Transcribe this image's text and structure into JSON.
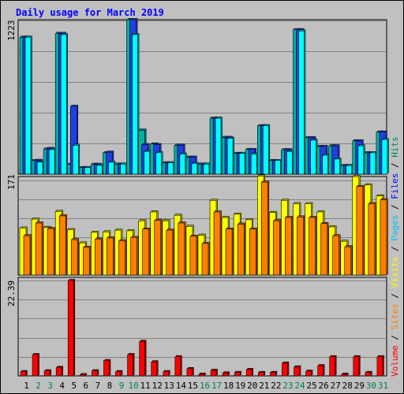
{
  "chart_data": {
    "type": "bar",
    "title": "Daily usage for March 2019",
    "colors": {
      "hits": "#00ffff",
      "files": "#0000ff",
      "pages": "#00c0ff",
      "visits": "#ffff00",
      "sites": "#ff8000",
      "volume": "#ff0000",
      "hits_back": "#008080",
      "files_back": "#2040e0",
      "visits_back": "#ffff00",
      "volume_back": "#ff0000",
      "weekend_label": "#00805c",
      "weekday_label": "#000000",
      "title": "#0000ff",
      "legend_slash": "#000000"
    },
    "categories": [
      "1",
      "2",
      "3",
      "4",
      "5",
      "6",
      "7",
      "8",
      "9",
      "10",
      "11",
      "12",
      "13",
      "14",
      "15",
      "16",
      "17",
      "18",
      "19",
      "20",
      "21",
      "22",
      "23",
      "24",
      "25",
      "26",
      "27",
      "28",
      "29",
      "30",
      "31"
    ],
    "weekend_days": [
      "2",
      "3",
      "9",
      "10",
      "16",
      "17",
      "23",
      "24",
      "30",
      "31"
    ],
    "top_panel": {
      "ymax": 1223,
      "tick_label": "1223",
      "series": [
        {
          "name": "Hits",
          "values": [
            1090,
            108,
            200,
            1120,
            78,
            52,
            78,
            170,
            80,
            1230,
            350,
            240,
            90,
            230,
            135,
            80,
            445,
            292,
            165,
            196,
            385,
            108,
            194,
            1150,
            290,
            220,
            225,
            68,
            265,
            170,
            335
          ]
        },
        {
          "name": "Files",
          "values": [
            1090,
            110,
            205,
            1120,
            540,
            52,
            78,
            175,
            80,
            1230,
            235,
            235,
            90,
            230,
            135,
            80,
            445,
            292,
            165,
            196,
            385,
            108,
            194,
            1150,
            290,
            220,
            225,
            68,
            265,
            170,
            335
          ]
        },
        {
          "name": "Pages",
          "values": [
            1090,
            95,
            195,
            1110,
            230,
            52,
            70,
            95,
            80,
            1110,
            180,
            170,
            90,
            160,
            85,
            80,
            445,
            285,
            165,
            160,
            385,
            108,
            180,
            1140,
            270,
            150,
            120,
            68,
            225,
            170,
            275
          ]
        }
      ]
    },
    "middle_panel": {
      "ymax": 171,
      "tick_label": "171",
      "series": [
        {
          "name": "Visits",
          "values": [
            85,
            101,
            86,
            115,
            82,
            58,
            77,
            78,
            81,
            80,
            98,
            114,
            98,
            108,
            88,
            72,
            135,
            104,
            110,
            100,
            179,
            113,
            135,
            129,
            129,
            114,
            87,
            61,
            178,
            163,
            143
          ]
        },
        {
          "name": "Sites",
          "values": [
            71,
            94,
            84,
            107,
            64,
            50,
            65,
            67,
            62,
            68,
            83,
            99,
            81,
            94,
            70,
            57,
            114,
            83,
            92,
            83,
            168,
            98,
            104,
            105,
            104,
            93,
            71,
            51,
            160,
            129,
            136
          ]
        }
      ]
    },
    "bottom_panel": {
      "ymax": 22.39,
      "tick_label": "22.39",
      "series": [
        {
          "name": "Volume",
          "values": [
            1.0,
            5.0,
            1.2,
            2.0,
            22.39,
            0.3,
            1.2,
            3.6,
            1.0,
            5.0,
            8.1,
            3.3,
            1.0,
            4.5,
            1.7,
            0.4,
            1.3,
            0.7,
            0.8,
            1.5,
            0.8,
            0.8,
            3.0,
            2.1,
            1.1,
            2.4,
            4.5,
            0.4,
            4.5,
            0.8,
            4.5
          ]
        }
      ]
    },
    "legend": [
      "Volume",
      "Sites",
      "Visits",
      "Pages",
      "Files",
      "Hits"
    ],
    "legend_separator": " / ",
    "legend_colors": [
      "#ff0000",
      "#ff8000",
      "#ffff00",
      "#00c0ff",
      "#0000ff",
      "#00805c"
    ]
  }
}
